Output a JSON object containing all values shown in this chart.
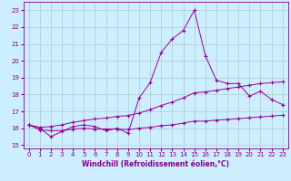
{
  "xlabel": "Windchill (Refroidissement éolien,°C)",
  "background_color": "#cceeff",
  "grid_color": "#aacccc",
  "line_color": "#990099",
  "x": [
    0,
    1,
    2,
    3,
    4,
    5,
    6,
    7,
    8,
    9,
    10,
    11,
    12,
    13,
    14,
    15,
    16,
    17,
    18,
    19,
    20,
    21,
    22,
    23
  ],
  "y_main": [
    16.2,
    16.0,
    15.5,
    15.8,
    16.1,
    16.2,
    16.1,
    15.85,
    16.0,
    15.7,
    17.8,
    18.7,
    20.5,
    21.3,
    21.8,
    23.0,
    20.3,
    18.85,
    18.65,
    18.65,
    17.9,
    18.2,
    17.7,
    17.4
  ],
  "y_upper": [
    16.2,
    16.05,
    16.1,
    16.2,
    16.35,
    16.45,
    16.55,
    16.6,
    16.7,
    16.75,
    16.9,
    17.1,
    17.35,
    17.55,
    17.8,
    18.1,
    18.15,
    18.25,
    18.35,
    18.45,
    18.55,
    18.65,
    18.7,
    18.75
  ],
  "y_lower": [
    16.2,
    15.9,
    15.85,
    15.85,
    15.95,
    16.0,
    15.95,
    15.95,
    15.95,
    15.92,
    16.0,
    16.05,
    16.15,
    16.2,
    16.3,
    16.42,
    16.42,
    16.48,
    16.52,
    16.57,
    16.62,
    16.67,
    16.72,
    16.77
  ],
  "ylim": [
    14.8,
    23.5
  ],
  "xlim": [
    -0.5,
    23.5
  ],
  "yticks": [
    15,
    16,
    17,
    18,
    19,
    20,
    21,
    22,
    23
  ],
  "xticks": [
    0,
    1,
    2,
    3,
    4,
    5,
    6,
    7,
    8,
    9,
    10,
    11,
    12,
    13,
    14,
    15,
    16,
    17,
    18,
    19,
    20,
    21,
    22,
    23
  ],
  "tick_fontsize": 5.0,
  "xlabel_fontsize": 5.5
}
